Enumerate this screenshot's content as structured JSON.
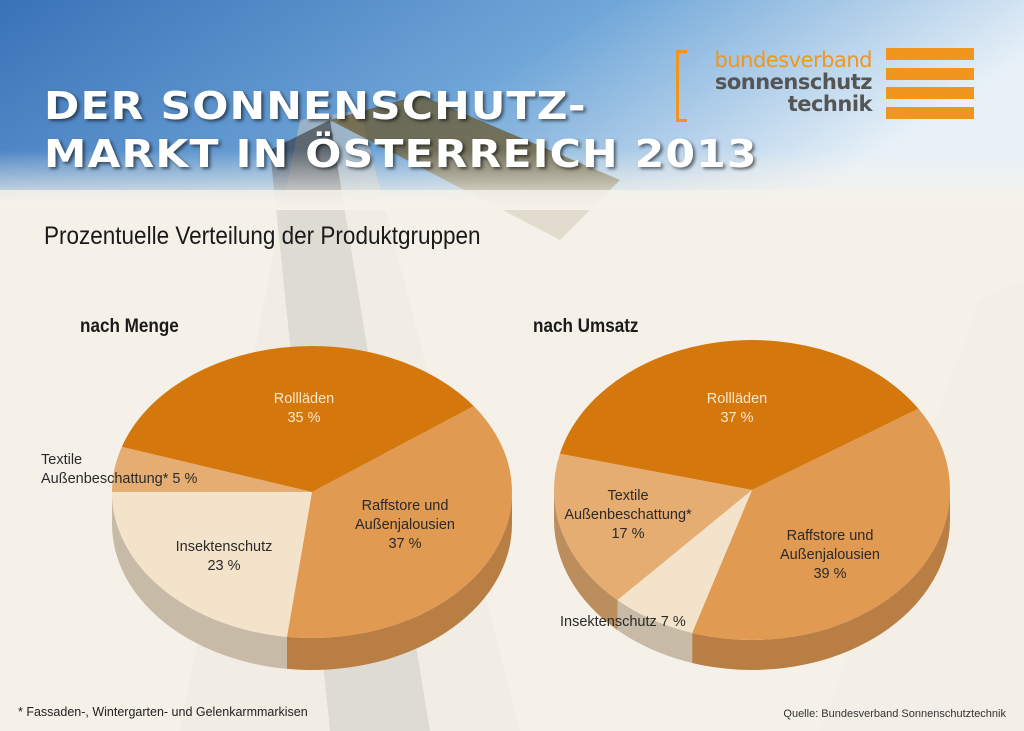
{
  "header": {
    "title_line1": "DER SONNENSCHUTZ-",
    "title_line2": "MARKT IN ÖSTERREICH 2013",
    "logo": {
      "line1": "bundesverband",
      "line2": "sonnenschutz",
      "line3": "technik",
      "accent_color": "#f0961e"
    }
  },
  "subtitle": "Prozentuelle Verteilung der Produktgruppen",
  "colors": {
    "rollladen": "#d4780e",
    "raffstore": "#e09a52",
    "textile": "#e6ad72",
    "insekten": "#f3e3ca"
  },
  "chart_data": [
    {
      "type": "pie",
      "title": "nach Menge",
      "unit": "%",
      "slices": [
        {
          "key": "rollladen",
          "label": "Rollläden",
          "value": 35,
          "value_label": "35 %"
        },
        {
          "key": "raffstore",
          "label": "Raffstore und Außenjalousien",
          "label_lines": [
            "Raffstore und",
            "Außenjalousien"
          ],
          "value": 37,
          "value_label": "37 %"
        },
        {
          "key": "insekten",
          "label": "Insektenschutz",
          "value": 23,
          "value_label": "23 %"
        },
        {
          "key": "textile",
          "label": "Textile Außenbeschattung*",
          "label_lines": [
            "Textile",
            "Außenbeschattung* 5 %"
          ],
          "value": 5,
          "value_label": "5 %"
        }
      ]
    },
    {
      "type": "pie",
      "title": "nach Umsatz",
      "unit": "%",
      "slices": [
        {
          "key": "rollladen",
          "label": "Rollläden",
          "value": 37,
          "value_label": "37 %"
        },
        {
          "key": "raffstore",
          "label": "Raffstore und Außenjalousien",
          "label_lines": [
            "Raffstore und",
            "Außenjalousien"
          ],
          "value": 39,
          "value_label": "39 %"
        },
        {
          "key": "insekten",
          "label": "Insektenschutz",
          "label_lines": [
            "Insektenschutz 7 %"
          ],
          "value": 7,
          "value_label": "7 %"
        },
        {
          "key": "textile",
          "label": "Textile Außenbeschattung*",
          "label_lines": [
            "Textile",
            "Außenbeschattung*"
          ],
          "value": 17,
          "value_label": "17 %"
        }
      ]
    }
  ],
  "footnote": "* Fassaden-, Wintergarten- und Gelenkarmmarkisen",
  "source": "Quelle: Bundesverband Sonnenschutztechnik"
}
